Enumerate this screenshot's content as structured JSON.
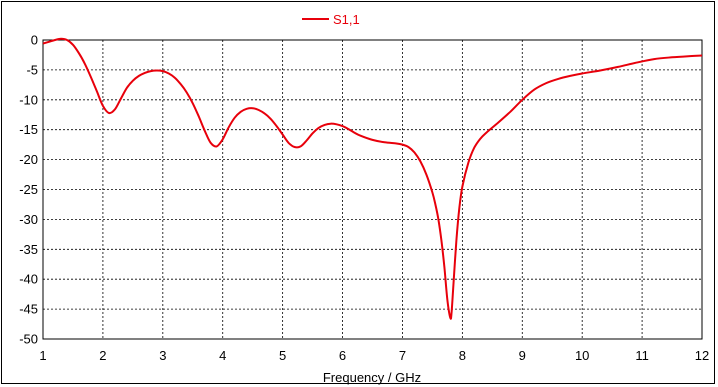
{
  "chart_data": {
    "type": "line",
    "title": "",
    "xlabel": "Frequency / GHz",
    "ylabel": "",
    "xlim": [
      1,
      12
    ],
    "ylim": [
      -50,
      0
    ],
    "xticks": [
      "1",
      "2",
      "3",
      "4",
      "5",
      "6",
      "7",
      "8",
      "9",
      "10",
      "11",
      "12"
    ],
    "yticks": [
      "0",
      "-5",
      "-10",
      "-15",
      "-20",
      "-25",
      "-30",
      "-35",
      "-40",
      "-45",
      "-50"
    ],
    "grid": true,
    "legend_position": "top-center",
    "series": [
      {
        "name": "S1,1",
        "color": "#e8000b",
        "x": [
          1.0,
          1.1,
          1.2,
          1.3,
          1.4,
          1.5,
          1.6,
          1.7,
          1.8,
          1.9,
          2.0,
          2.1,
          2.2,
          2.3,
          2.4,
          2.5,
          2.6,
          2.7,
          2.8,
          2.9,
          3.0,
          3.1,
          3.2,
          3.3,
          3.4,
          3.5,
          3.6,
          3.7,
          3.8,
          3.9,
          4.0,
          4.1,
          4.2,
          4.3,
          4.4,
          4.5,
          4.6,
          4.7,
          4.8,
          4.9,
          5.0,
          5.1,
          5.2,
          5.3,
          5.4,
          5.5,
          5.6,
          5.7,
          5.8,
          5.9,
          6.0,
          6.1,
          6.2,
          6.3,
          6.5,
          6.7,
          6.9,
          7.0,
          7.1,
          7.2,
          7.3,
          7.4,
          7.5,
          7.55,
          7.6,
          7.65,
          7.7,
          7.75,
          7.8,
          7.82,
          7.85,
          7.9,
          7.95,
          8.0,
          8.1,
          8.2,
          8.3,
          8.4,
          8.6,
          8.8,
          9.0,
          9.2,
          9.4,
          9.6,
          9.8,
          10.0,
          10.3,
          10.6,
          10.9,
          11.2,
          11.5,
          11.8,
          12.0
        ],
        "y": [
          -0.6,
          -0.3,
          0.0,
          0.2,
          0.0,
          -0.8,
          -2.2,
          -4.0,
          -6.2,
          -8.6,
          -11.0,
          -12.2,
          -11.6,
          -9.8,
          -8.0,
          -6.8,
          -6.0,
          -5.5,
          -5.2,
          -5.1,
          -5.2,
          -5.6,
          -6.3,
          -7.4,
          -8.8,
          -10.6,
          -12.8,
          -15.2,
          -17.2,
          -17.8,
          -16.6,
          -14.6,
          -13.0,
          -12.0,
          -11.5,
          -11.4,
          -11.7,
          -12.3,
          -13.2,
          -14.4,
          -15.8,
          -17.2,
          -17.9,
          -17.8,
          -16.8,
          -15.6,
          -14.7,
          -14.2,
          -14.0,
          -14.1,
          -14.4,
          -14.9,
          -15.5,
          -16.0,
          -16.7,
          -17.1,
          -17.3,
          -17.5,
          -17.9,
          -18.8,
          -20.3,
          -22.5,
          -25.5,
          -27.5,
          -30.0,
          -33.5,
          -38.0,
          -43.5,
          -46.5,
          -45.5,
          -41.0,
          -33.5,
          -28.0,
          -24.5,
          -20.5,
          -18.0,
          -16.5,
          -15.5,
          -13.8,
          -12.0,
          -10.0,
          -8.3,
          -7.2,
          -6.5,
          -6.0,
          -5.6,
          -5.1,
          -4.5,
          -3.8,
          -3.2,
          -2.9,
          -2.7,
          -2.6
        ]
      }
    ]
  }
}
